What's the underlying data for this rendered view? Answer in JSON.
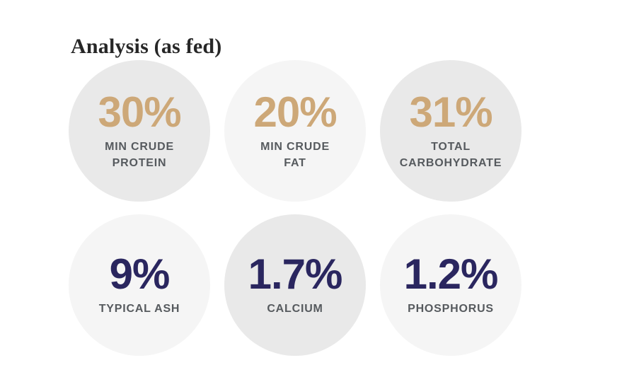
{
  "page": {
    "background": "#ffffff"
  },
  "header": {
    "title": "Analysis (as fed)"
  },
  "colors": {
    "gold": "#CDA878",
    "navy": "#2A265F",
    "label": "#565A5E",
    "title": "#272727",
    "circle_dark": "#E9E9E9",
    "circle_light": "#F5F5F5"
  },
  "analysis": {
    "items": [
      {
        "id": "min-crude-protein",
        "value": "30%",
        "label": "MIN CRUDE PROTEIN",
        "label_lines": [
          "MIN CRUDE",
          "PROTEIN"
        ],
        "shade": "circle_dark",
        "value_color": "gold"
      },
      {
        "id": "min-crude-fat",
        "value": "20%",
        "label": "MIN CRUDE FAT",
        "label_lines": [
          "MIN CRUDE",
          "FAT"
        ],
        "shade": "circle_light",
        "value_color": "gold"
      },
      {
        "id": "total-carbohydrate",
        "value": "31%",
        "label": "TOTAL CARBOHYDRATE",
        "label_lines": [
          "TOTAL",
          "CARBOHYDRATE"
        ],
        "shade": "circle_dark",
        "value_color": "gold"
      },
      {
        "id": "typical-ash",
        "value": "9%",
        "label": "TYPICAL ASH",
        "label_lines": [
          "TYPICAL ASH"
        ],
        "shade": "circle_light",
        "value_color": "navy"
      },
      {
        "id": "calcium",
        "value": "1.7%",
        "label": "CALCIUM",
        "label_lines": [
          "CALCIUM"
        ],
        "shade": "circle_dark",
        "value_color": "navy"
      },
      {
        "id": "phosphorus",
        "value": "1.2%",
        "label": "PHOSPHORUS",
        "label_lines": [
          "PHOSPHORUS"
        ],
        "shade": "circle_light",
        "value_color": "navy"
      }
    ]
  }
}
